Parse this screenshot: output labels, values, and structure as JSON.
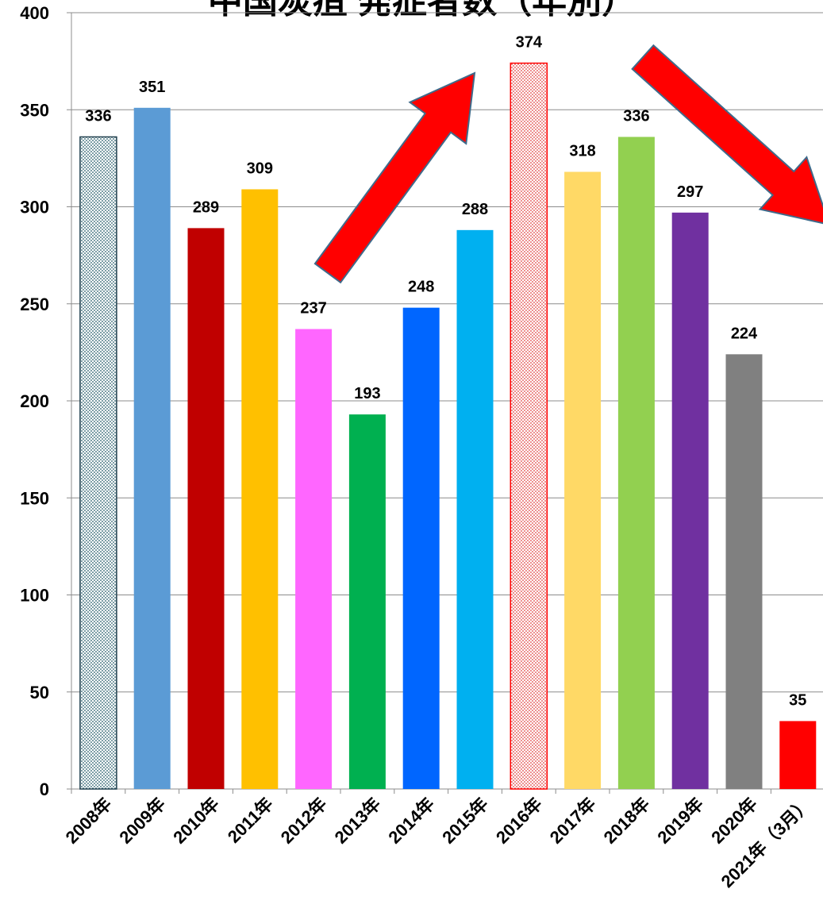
{
  "chart_data": {
    "type": "bar",
    "title": "中国炭疽 発症者数（年別）",
    "xlabel": "",
    "ylabel": "",
    "ylim": [
      0,
      400
    ],
    "yticks": [
      0,
      50,
      100,
      150,
      200,
      250,
      300,
      350,
      400
    ],
    "grid": true,
    "categories": [
      "2008年",
      "2009年",
      "2010年",
      "2011年",
      "2012年",
      "2013年",
      "2014年",
      "2015年",
      "2016年",
      "2017年",
      "2018年",
      "2019年",
      "2020年",
      "2021年（3月）"
    ],
    "values": [
      336,
      351,
      289,
      309,
      237,
      193,
      248,
      288,
      374,
      318,
      336,
      297,
      224,
      35
    ],
    "data_labels": [
      "336",
      "351",
      "289",
      "309",
      "237",
      "193",
      "248",
      "288",
      "374",
      "318",
      "336",
      "297",
      "224",
      "35"
    ],
    "colors": [
      "#daeef3",
      "#5b9bd5",
      "#c00000",
      "#ffc000",
      "#ff66ff",
      "#00b050",
      "#0066ff",
      "#00b0f0",
      "#ffcccc",
      "#ffd966",
      "#92d050",
      "#7030a0",
      "#808080",
      "#ff0000"
    ],
    "patterns": [
      "dots-dark",
      null,
      null,
      null,
      null,
      null,
      null,
      null,
      "dots-red",
      null,
      null,
      null,
      null,
      null
    ],
    "annotations": [
      {
        "type": "arrow",
        "direction": "up",
        "color": "#ff0000"
      },
      {
        "type": "arrow",
        "direction": "down",
        "color": "#ff0000"
      }
    ]
  }
}
